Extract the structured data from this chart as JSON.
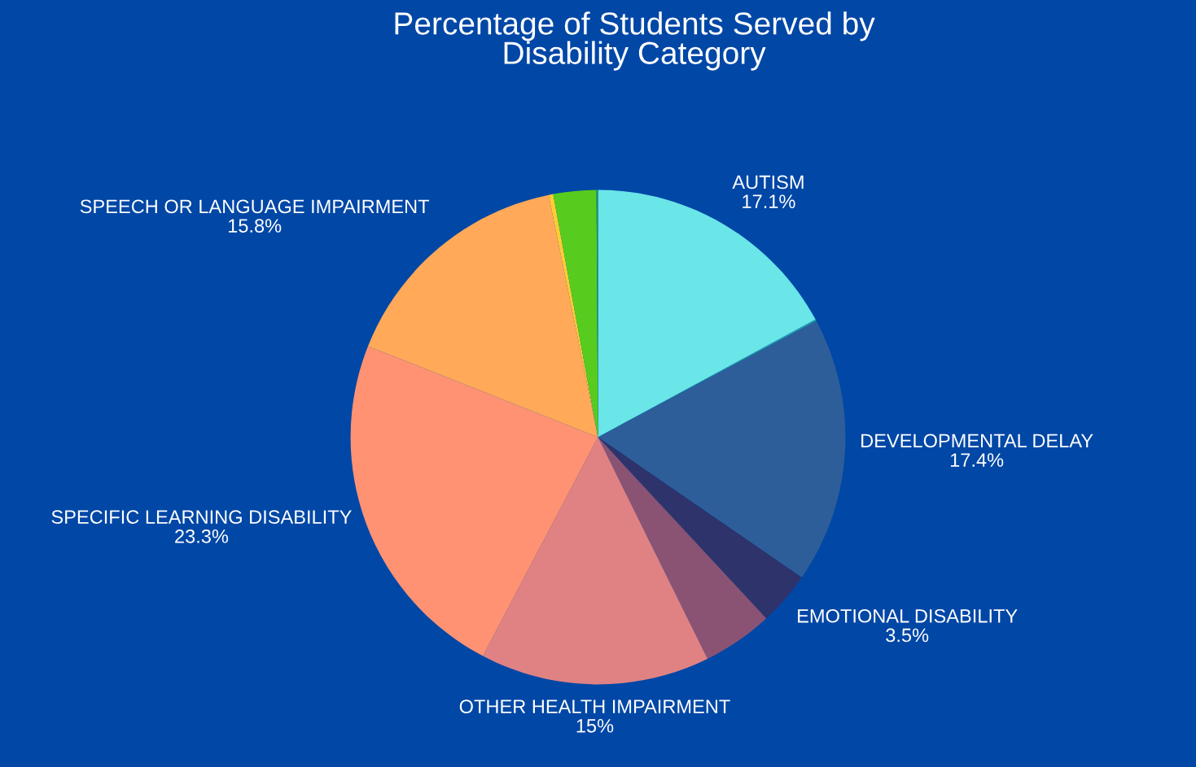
{
  "chart_data": {
    "type": "pie",
    "title": "Percentage of Students Served by\nDisability Category",
    "categories": [
      "AUTISM",
      null,
      "DEVELOPMENTAL DELAY",
      "EMOTIONAL DISABILITY",
      null,
      "OTHER HEALTH IMPAIRMENT",
      "SPECIFIC LEARNING DISABILITY",
      "SPEECH OR LANGUAGE IMPAIRMENT",
      null,
      null,
      null
    ],
    "values": [
      17.1,
      0.1,
      17.4,
      3.5,
      4.6,
      15,
      23.3,
      15.8,
      0.3,
      2.8,
      0.1
    ],
    "value_labels": [
      "17.1%",
      null,
      "17.4%",
      "3.5%",
      null,
      "15%",
      "23.3%",
      "15.8%",
      null,
      null,
      null
    ],
    "colors": [
      "#6ae5e8",
      "#1fa0b0",
      "#2e5e99",
      "#2e336b",
      "#8a5373",
      "#e08283",
      "#ff9273",
      "#ffa959",
      "#ffcc33",
      "#57cc1f",
      "#1a9a6a"
    ]
  }
}
